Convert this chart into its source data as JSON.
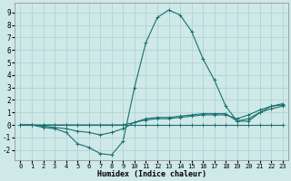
{
  "xlabel": "Humidex (Indice chaleur)",
  "background_color": "#cfe8e8",
  "grid_color": "#b0d4d4",
  "line_color": "#1a7070",
  "xlim": [
    -0.5,
    23.5
  ],
  "ylim": [
    -2.8,
    9.8
  ],
  "xticks": [
    0,
    1,
    2,
    3,
    4,
    5,
    6,
    7,
    8,
    9,
    10,
    11,
    12,
    13,
    14,
    15,
    16,
    17,
    18,
    19,
    20,
    21,
    22,
    23
  ],
  "yticks": [
    -2,
    -1,
    0,
    1,
    2,
    3,
    4,
    5,
    6,
    7,
    8,
    9
  ],
  "lines": [
    {
      "x": [
        0,
        1,
        2,
        3,
        4,
        5,
        6,
        7,
        8,
        9,
        10,
        11,
        12,
        13,
        14,
        15,
        16,
        17,
        18,
        19,
        20,
        21,
        22,
        23
      ],
      "y": [
        0,
        0,
        0,
        0,
        0,
        0,
        0,
        0,
        0,
        0,
        0,
        0,
        0,
        0,
        0,
        0,
        0,
        0,
        0,
        0,
        0,
        0,
        0,
        0
      ]
    },
    {
      "x": [
        0,
        1,
        2,
        3,
        4,
        5,
        6,
        7,
        8,
        9,
        10,
        11,
        12,
        13,
        14,
        15,
        16,
        17,
        18,
        19,
        20,
        21,
        22,
        23
      ],
      "y": [
        0,
        0,
        0,
        0,
        0,
        0,
        0,
        0,
        0,
        0,
        0.2,
        0.4,
        0.5,
        0.5,
        0.6,
        0.7,
        0.8,
        0.8,
        0.8,
        0.5,
        0.8,
        1.2,
        1.5,
        1.6
      ]
    },
    {
      "x": [
        0,
        1,
        2,
        3,
        4,
        5,
        6,
        7,
        8,
        9,
        10,
        11,
        12,
        13,
        14,
        15,
        16,
        17,
        18,
        19,
        20,
        21,
        22,
        23
      ],
      "y": [
        0,
        0,
        -0.1,
        -0.2,
        -0.3,
        -0.5,
        -0.6,
        -0.8,
        -0.6,
        -0.3,
        0.2,
        0.5,
        0.6,
        0.6,
        0.7,
        0.8,
        0.9,
        0.9,
        0.9,
        0.3,
        0.5,
        1.0,
        1.3,
        1.5
      ]
    },
    {
      "x": [
        0,
        1,
        2,
        3,
        4,
        5,
        6,
        7,
        8,
        9,
        10,
        11,
        12,
        13,
        14,
        15,
        16,
        17,
        18,
        19,
        20,
        21,
        22,
        23
      ],
      "y": [
        0,
        0,
        -0.2,
        -0.3,
        -0.6,
        -1.5,
        -1.8,
        -2.3,
        -2.4,
        -1.3,
        3.0,
        6.6,
        8.6,
        9.2,
        8.8,
        7.5,
        5.3,
        3.6,
        1.5,
        0.3,
        0.3,
        1.0,
        1.5,
        1.7
      ]
    }
  ]
}
